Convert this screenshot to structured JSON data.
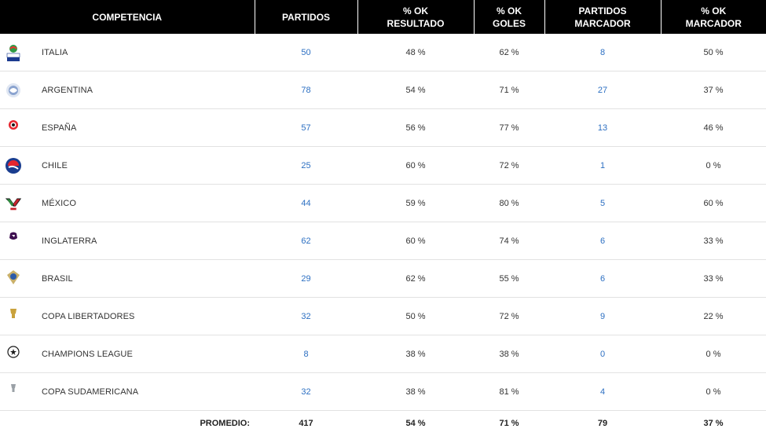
{
  "headers": {
    "competencia": "COMPETENCIA",
    "partidos": "PARTIDOS",
    "ok_resultado_1": "% OK",
    "ok_resultado_2": "RESULTADO",
    "ok_goles_1": "% OK",
    "ok_goles_2": "GOLES",
    "partidos_marcador_1": "PARTIDOS",
    "partidos_marcador_2": "MARCADOR",
    "ok_marcador_1": "% OK",
    "ok_marcador_2": "MARCADOR"
  },
  "rows": [
    {
      "name": "ITALIA",
      "partidos": "50",
      "ok_resultado": "48 %",
      "ok_goles": "62 %",
      "partidos_marcador": "8",
      "ok_marcador": "50 %",
      "logo_text": "SERIE A",
      "logo_icon": "serie-a-logo-icon"
    },
    {
      "name": "ARGENTINA",
      "partidos": "78",
      "ok_resultado": "54 %",
      "ok_goles": "71 %",
      "partidos_marcador": "27",
      "ok_marcador": "37 %",
      "logo_text": "",
      "logo_icon": "superliga-argentina-logo-icon"
    },
    {
      "name": "ESPAÑA",
      "partidos": "57",
      "ok_resultado": "56 %",
      "ok_goles": "77 %",
      "partidos_marcador": "13",
      "ok_marcador": "46 %",
      "logo_text": "LaLiga",
      "logo_icon": "laliga-logo-icon"
    },
    {
      "name": "CHILE",
      "partidos": "25",
      "ok_resultado": "60 %",
      "ok_goles": "72 %",
      "partidos_marcador": "1",
      "ok_marcador": "0 %",
      "logo_text": "",
      "logo_icon": "chile-league-logo-icon"
    },
    {
      "name": "MÉXICO",
      "partidos": "44",
      "ok_resultado": "59 %",
      "ok_goles": "80 %",
      "partidos_marcador": "5",
      "ok_marcador": "60 %",
      "logo_text": "",
      "logo_icon": "liga-mx-logo-icon"
    },
    {
      "name": "INGLATERRA",
      "partidos": "62",
      "ok_resultado": "60 %",
      "ok_goles": "74 %",
      "partidos_marcador": "6",
      "ok_marcador": "33 %",
      "logo_text": "Premier League",
      "logo_icon": "premier-league-logo-icon"
    },
    {
      "name": "BRASIL",
      "partidos": "29",
      "ok_resultado": "62 %",
      "ok_goles": "55 %",
      "partidos_marcador": "6",
      "ok_marcador": "33 %",
      "logo_text": "",
      "logo_icon": "brasileirao-logo-icon"
    },
    {
      "name": "COPA LIBERTADORES",
      "partidos": "32",
      "ok_resultado": "50 %",
      "ok_goles": "72 %",
      "partidos_marcador": "9",
      "ok_marcador": "22 %",
      "logo_text": "LIBERTADORES",
      "logo_icon": "copa-libertadores-logo-icon"
    },
    {
      "name": "CHAMPIONS LEAGUE",
      "partidos": "8",
      "ok_resultado": "38 %",
      "ok_goles": "38 %",
      "partidos_marcador": "0",
      "ok_marcador": "0 %",
      "logo_text": "",
      "logo_icon": "champions-league-logo-icon"
    },
    {
      "name": "COPA SUDAMERICANA",
      "partidos": "32",
      "ok_resultado": "38 %",
      "ok_goles": "81 %",
      "partidos_marcador": "4",
      "ok_marcador": "0 %",
      "logo_text": "SUDAMERICANA",
      "logo_icon": "copa-sudamericana-logo-icon"
    }
  ],
  "footer": {
    "label": "PROMEDIO:",
    "partidos": "417",
    "ok_resultado": "54 %",
    "ok_goles": "71 %",
    "partidos_marcador": "79",
    "ok_marcador": "37 %"
  },
  "colors": {
    "header_bg": "#000000",
    "link": "#2c6fc2",
    "text": "#333333"
  }
}
